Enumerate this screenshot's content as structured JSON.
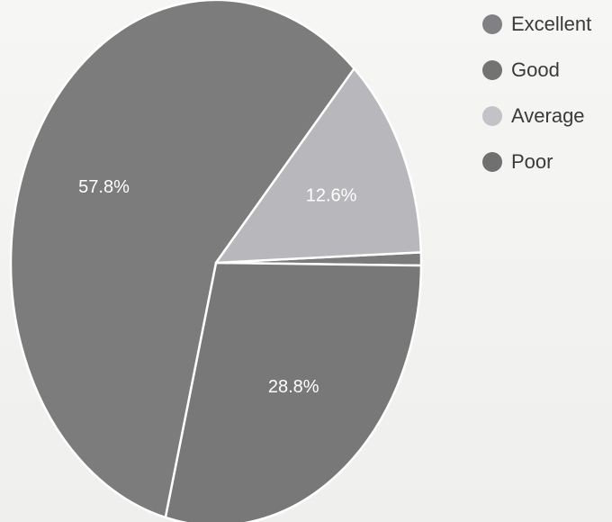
{
  "chart_data": {
    "type": "pie",
    "title": "",
    "legend_position": "top-right",
    "slices": [
      {
        "name": "Excellent",
        "value": 0.8,
        "label": "",
        "color": "#7b7b7b"
      },
      {
        "name": "Good",
        "value": 28.8,
        "label": "28.8%",
        "color": "#787878"
      },
      {
        "name": "Poor",
        "value": 57.8,
        "label": "57.8%",
        "color": "#7c7c7c"
      },
      {
        "name": "Average",
        "value": 12.6,
        "label": "12.6%",
        "color": "#b8b8bc"
      }
    ],
    "legend": [
      {
        "name": "Excellent",
        "color": "#808085"
      },
      {
        "name": "Good",
        "color": "#737373"
      },
      {
        "name": "Average",
        "color": "#c2c2c7"
      },
      {
        "name": "Poor",
        "color": "#707070"
      }
    ]
  }
}
